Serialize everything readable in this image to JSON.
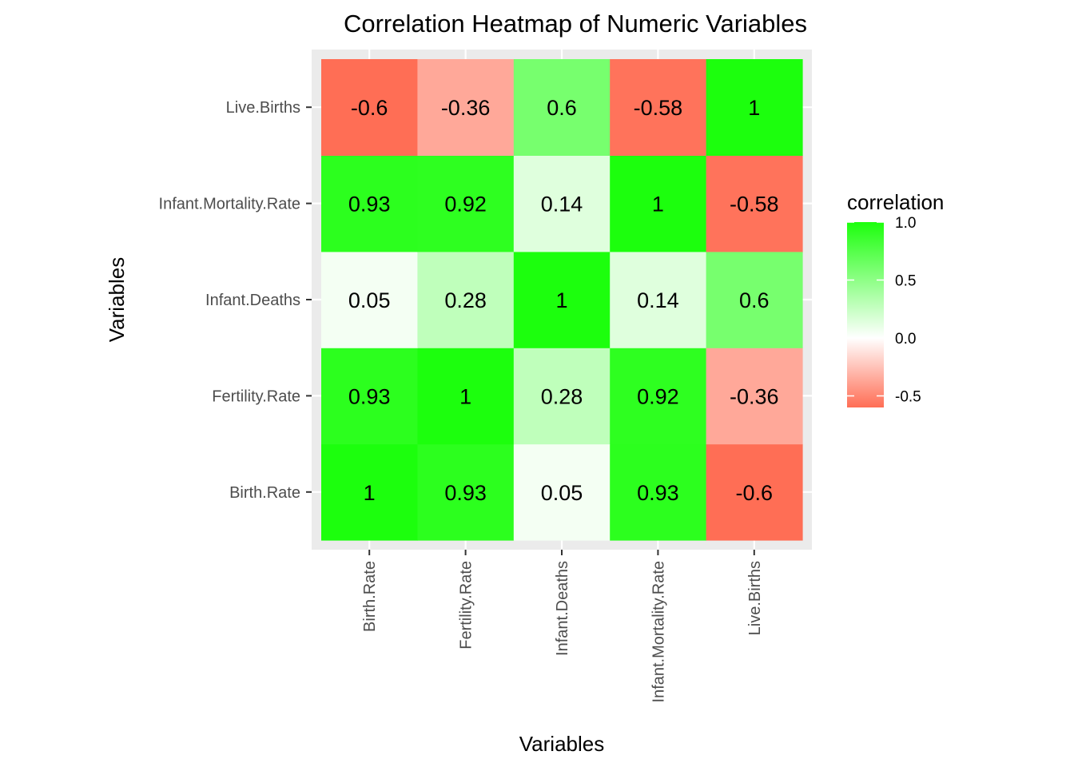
{
  "chart_data": {
    "type": "heatmap",
    "title": "Correlation Heatmap of Numeric Variables",
    "xlabel": "Variables",
    "ylabel": "Variables",
    "x_categories": [
      "Birth.Rate",
      "Fertility.Rate",
      "Infant.Deaths",
      "Infant.Mortality.Rate",
      "Live.Births"
    ],
    "y_categories": [
      "Birth.Rate",
      "Fertility.Rate",
      "Infant.Deaths",
      "Infant.Mortality.Rate",
      "Live.Births"
    ],
    "values": [
      [
        1,
        0.93,
        0.05,
        0.93,
        -0.6
      ],
      [
        0.93,
        1,
        0.28,
        0.92,
        -0.36
      ],
      [
        0.05,
        0.28,
        1,
        0.14,
        0.6
      ],
      [
        0.93,
        0.92,
        0.14,
        1,
        -0.58
      ],
      [
        -0.6,
        -0.36,
        0.6,
        -0.58,
        1
      ]
    ],
    "value_labels": [
      [
        "1",
        "0.93",
        "0.05",
        "0.93",
        "-0.6"
      ],
      [
        "0.93",
        "1",
        "0.28",
        "0.92",
        "-0.36"
      ],
      [
        "0.05",
        "0.28",
        "1",
        "0.14",
        "0.6"
      ],
      [
        "0.93",
        "0.92",
        "0.14",
        "1",
        "-0.58"
      ],
      [
        "-0.6",
        "-0.36",
        "0.6",
        "-0.58",
        "1"
      ]
    ],
    "legend": {
      "title": "correlation",
      "breaks": [
        1.0,
        0.5,
        0.0,
        -0.5
      ],
      "break_labels": [
        "1.0",
        "0.5",
        "0.0",
        "-0.5"
      ],
      "range": [
        -0.6,
        1.0
      ],
      "low_color": "#ff6e55",
      "mid_color": "#ffffff",
      "high_color": "#1cff0d",
      "placement": "right"
    },
    "panel_background": "#ebebeb",
    "grid": true
  }
}
